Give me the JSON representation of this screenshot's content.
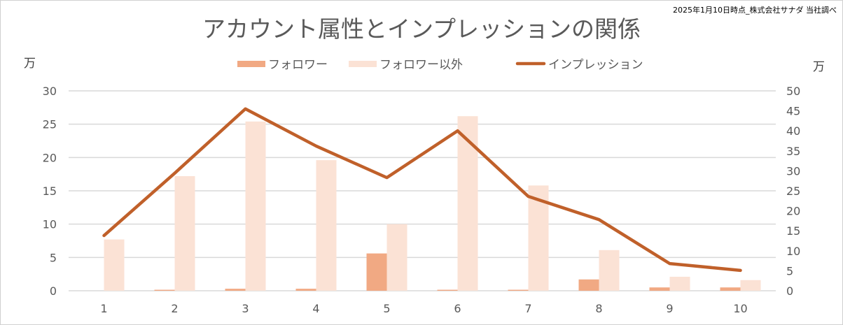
{
  "note": "2025年1月10日時点_株式会社サナダ 当社調べ",
  "chart_data": {
    "type": "bar+line",
    "title": "アカウント属性とインプレッションの関係",
    "left_unit": "万",
    "right_unit": "万",
    "categories": [
      "1",
      "2",
      "3",
      "4",
      "5",
      "6",
      "7",
      "8",
      "9",
      "10"
    ],
    "left_axis": {
      "ylim": [
        0,
        30
      ],
      "ticks": [
        0,
        5,
        10,
        15,
        20,
        25,
        30
      ]
    },
    "right_axis": {
      "ylim": [
        0,
        50
      ],
      "ticks": [
        0,
        5,
        10,
        15,
        20,
        25,
        30,
        35,
        40,
        45,
        50
      ]
    },
    "grid": true,
    "legend_position": "top",
    "series": [
      {
        "name": "フォロワー",
        "type": "bar",
        "axis": "left",
        "color": "#F1A983",
        "values": [
          0,
          0.15,
          0.3,
          0.3,
          5.6,
          0.15,
          0.15,
          1.7,
          0.5,
          0.5
        ]
      },
      {
        "name": "フォロワー以外",
        "type": "bar",
        "axis": "left",
        "color": "#FBE2D5",
        "values": [
          7.7,
          17.2,
          25.4,
          19.6,
          10.0,
          26.2,
          15.8,
          6.1,
          2.1,
          1.6
        ]
      },
      {
        "name": "インプレッション",
        "type": "line",
        "axis": "right",
        "color": "#C0602A",
        "values": [
          13.8,
          29.4,
          45.5,
          36.2,
          28.3,
          40.0,
          23.6,
          17.8,
          6.8,
          5.1
        ]
      }
    ]
  }
}
